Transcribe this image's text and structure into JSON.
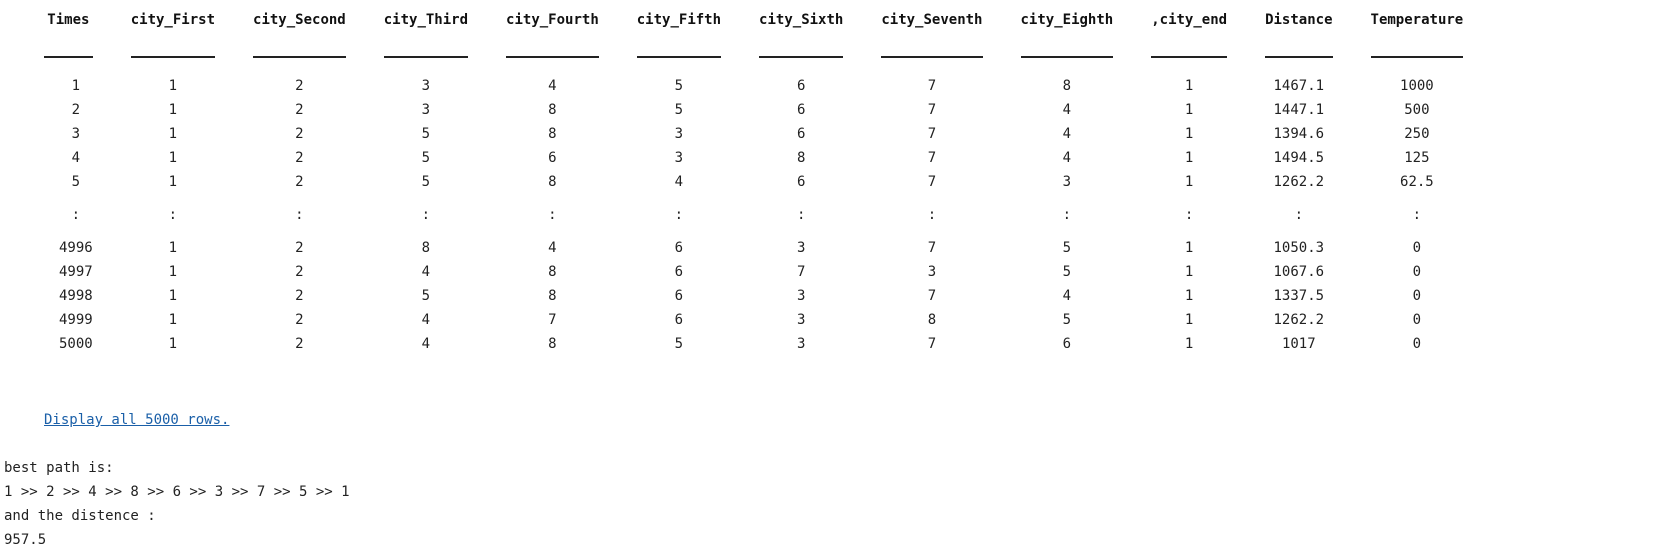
{
  "table": {
    "headers": [
      "Times",
      "city_First",
      "city_Second",
      "city_Third",
      "city_Fourth",
      "city_Fifth",
      "city_Sixth",
      "city_Seventh",
      "city_Eighth",
      ",city_end",
      "Distance",
      "Temperature"
    ],
    "top_rows": [
      [
        "1",
        "1",
        "2",
        "3",
        "4",
        "5",
        "6",
        "7",
        "8",
        "1",
        "1467.1",
        "1000"
      ],
      [
        "2",
        "1",
        "2",
        "3",
        "8",
        "5",
        "6",
        "7",
        "4",
        "1",
        "1447.1",
        "500"
      ],
      [
        "3",
        "1",
        "2",
        "5",
        "8",
        "3",
        "6",
        "7",
        "4",
        "1",
        "1394.6",
        "250"
      ],
      [
        "4",
        "1",
        "2",
        "5",
        "6",
        "3",
        "8",
        "7",
        "4",
        "1",
        "1494.5",
        "125"
      ],
      [
        "5",
        "1",
        "2",
        "5",
        "8",
        "4",
        "6",
        "7",
        "3",
        "1",
        "1262.2",
        "62.5"
      ]
    ],
    "ellipsis": [
      ":",
      ":",
      ":",
      ":",
      ":",
      ":",
      ":",
      ":",
      ":",
      ":",
      ":",
      ":"
    ],
    "bottom_rows": [
      [
        "4996",
        "1",
        "2",
        "8",
        "4",
        "6",
        "3",
        "7",
        "5",
        "1",
        "1050.3",
        "0"
      ],
      [
        "4997",
        "1",
        "2",
        "4",
        "8",
        "6",
        "7",
        "3",
        "5",
        "1",
        "1067.6",
        "0"
      ],
      [
        "4998",
        "1",
        "2",
        "5",
        "8",
        "6",
        "3",
        "7",
        "4",
        "1",
        "1337.5",
        "0"
      ],
      [
        "4999",
        "1",
        "2",
        "4",
        "7",
        "6",
        "3",
        "8",
        "5",
        "1",
        "1262.2",
        "0"
      ],
      [
        "5000",
        "1",
        "2",
        "4",
        "8",
        "5",
        "3",
        "7",
        "6",
        "1",
        "1017",
        "0"
      ]
    ]
  },
  "display_all_link": "Display all 5000 rows.",
  "output": {
    "line1": "best path is:",
    "line2": "1 >> 2 >> 4 >> 8 >> 6 >> 3 >> 7 >> 5 >> 1",
    "line3": "and the distence :",
    "line4": "957.5"
  }
}
